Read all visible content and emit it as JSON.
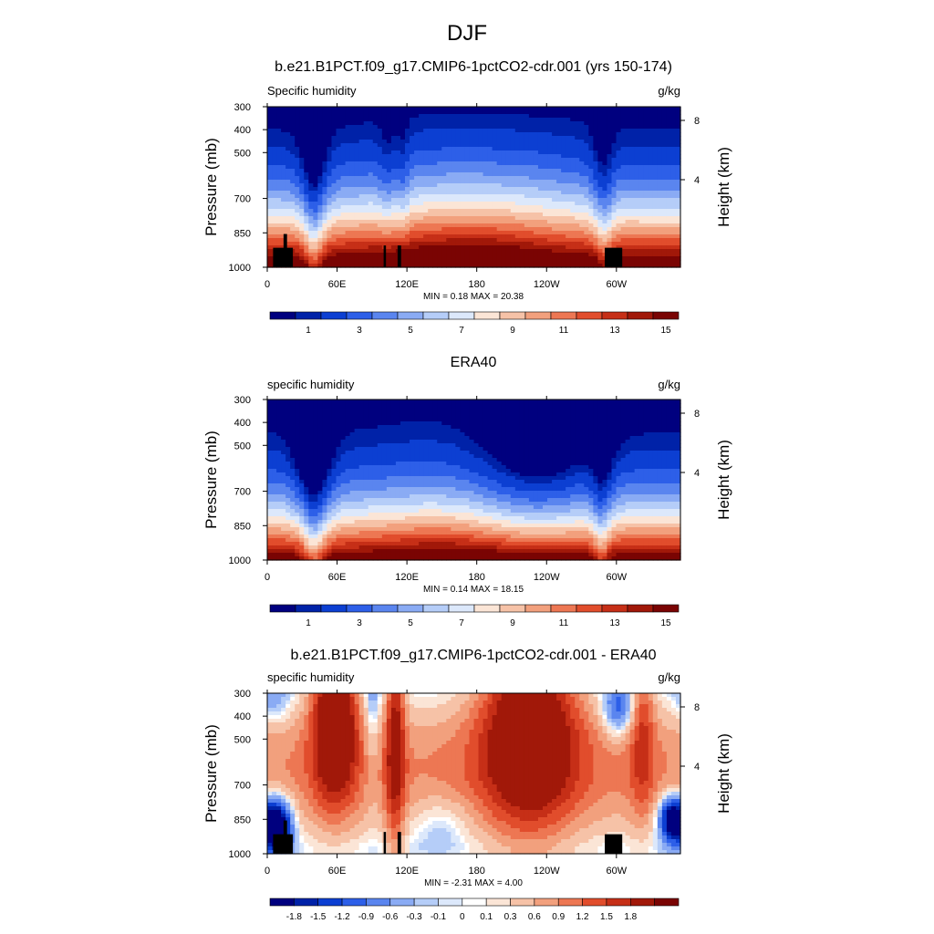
{
  "figure": {
    "title": "DJF"
  },
  "colors": {
    "abs_levels": [
      "#00007f",
      "#0022a8",
      "#0c3fd2",
      "#2d5fe8",
      "#5a85ef",
      "#8aabf4",
      "#b5cdf8",
      "#dce8fb",
      "#fbe5d6",
      "#f6c2a7",
      "#f2a07d",
      "#ed7753",
      "#e14d2c",
      "#c62f17",
      "#a11809",
      "#7a0403"
    ],
    "diff_levels": [
      "#00007f",
      "#0022a8",
      "#0c3fd2",
      "#2d5fe8",
      "#5a85ef",
      "#8aabf4",
      "#b5cdf8",
      "#dce8fb",
      "#ffffff",
      "#fbe5d6",
      "#f6c2a7",
      "#f2a07d",
      "#ed7753",
      "#e14d2c",
      "#c62f17",
      "#a11809",
      "#7a0403"
    ]
  },
  "chart_data": [
    {
      "type": "heatmap",
      "title": "b.e21.B1PCT.f09_g17.CMIP6-1pctCO2-cdr.001 (yrs 150-174)",
      "left_label": "Specific humidity",
      "units": "g/kg",
      "ylabel": "Pressure (mb)",
      "ylabel_right": "Height (km)",
      "x_ticks": [
        "0",
        "60E",
        "120E",
        "180",
        "120W",
        "60W"
      ],
      "x_tick_values": [
        0,
        60,
        120,
        180,
        240,
        300
      ],
      "xlim": [
        0,
        355
      ],
      "y_ticks": [
        "300",
        "400",
        "500",
        "700",
        "850",
        "1000"
      ],
      "y_tick_values": [
        300,
        400,
        500,
        700,
        850,
        1000
      ],
      "ylim": [
        300,
        1000
      ],
      "height_ticks": [
        "8",
        "4"
      ],
      "height_tick_values": [
        8,
        4
      ],
      "stats": "MIN =   0.18  MAX =  20.38",
      "min": 0.18,
      "max": 20.38,
      "colorbar_labels": [
        "1",
        "3",
        "5",
        "7",
        "9",
        "11",
        "13",
        "15"
      ],
      "colorbar_levels": [
        0.5,
        1,
        2,
        3,
        4,
        5,
        6,
        7,
        8,
        9,
        10,
        11,
        12,
        13,
        14,
        15
      ]
    },
    {
      "type": "heatmap",
      "title": "ERA40",
      "left_label": "specific humidity",
      "units": "g/kg",
      "ylabel": "Pressure (mb)",
      "ylabel_right": "Height (km)",
      "x_ticks": [
        "0",
        "60E",
        "120E",
        "180",
        "120W",
        "60W"
      ],
      "x_tick_values": [
        0,
        60,
        120,
        180,
        240,
        300
      ],
      "xlim": [
        0,
        355
      ],
      "y_ticks": [
        "300",
        "400",
        "500",
        "700",
        "850",
        "1000"
      ],
      "y_tick_values": [
        300,
        400,
        500,
        700,
        850,
        1000
      ],
      "ylim": [
        300,
        1000
      ],
      "height_ticks": [
        "8",
        "4"
      ],
      "height_tick_values": [
        8,
        4
      ],
      "stats": "MIN =   0.14  MAX =  18.15",
      "min": 0.14,
      "max": 18.15,
      "colorbar_labels": [
        "1",
        "3",
        "5",
        "7",
        "9",
        "11",
        "13",
        "15"
      ],
      "colorbar_levels": [
        0.5,
        1,
        2,
        3,
        4,
        5,
        6,
        7,
        8,
        9,
        10,
        11,
        12,
        13,
        14,
        15
      ]
    },
    {
      "type": "heatmap",
      "title": "b.e21.B1PCT.f09_g17.CMIP6-1pctCO2-cdr.001 - ERA40",
      "left_label": "specific humidity",
      "units": "g/kg",
      "ylabel": "Pressure (mb)",
      "ylabel_right": "Height (km)",
      "x_ticks": [
        "0",
        "60E",
        "120E",
        "180",
        "120W",
        "60W"
      ],
      "x_tick_values": [
        0,
        60,
        120,
        180,
        240,
        300
      ],
      "xlim": [
        0,
        355
      ],
      "y_ticks": [
        "300",
        "400",
        "500",
        "700",
        "850",
        "1000"
      ],
      "y_tick_values": [
        300,
        400,
        500,
        700,
        850,
        1000
      ],
      "ylim": [
        300,
        1000
      ],
      "height_ticks": [
        "8",
        "4"
      ],
      "height_tick_values": [
        8,
        4
      ],
      "stats": "MIN =  -2.31  MAX =   4.00",
      "min": -2.31,
      "max": 4.0,
      "colorbar_labels": [
        "-1.8",
        "-1.5",
        "-1.2",
        "-0.9",
        "-0.6",
        "-0.3",
        "-0.1",
        "0",
        "0.1",
        "0.3",
        "0.6",
        "0.9",
        "1.2",
        "1.5",
        "1.8"
      ],
      "colorbar_levels": [
        -1.8,
        -1.5,
        -1.2,
        -0.9,
        -0.6,
        -0.3,
        -0.1,
        0,
        0.1,
        0.3,
        0.6,
        0.9,
        1.2,
        1.5,
        1.8
      ]
    }
  ]
}
